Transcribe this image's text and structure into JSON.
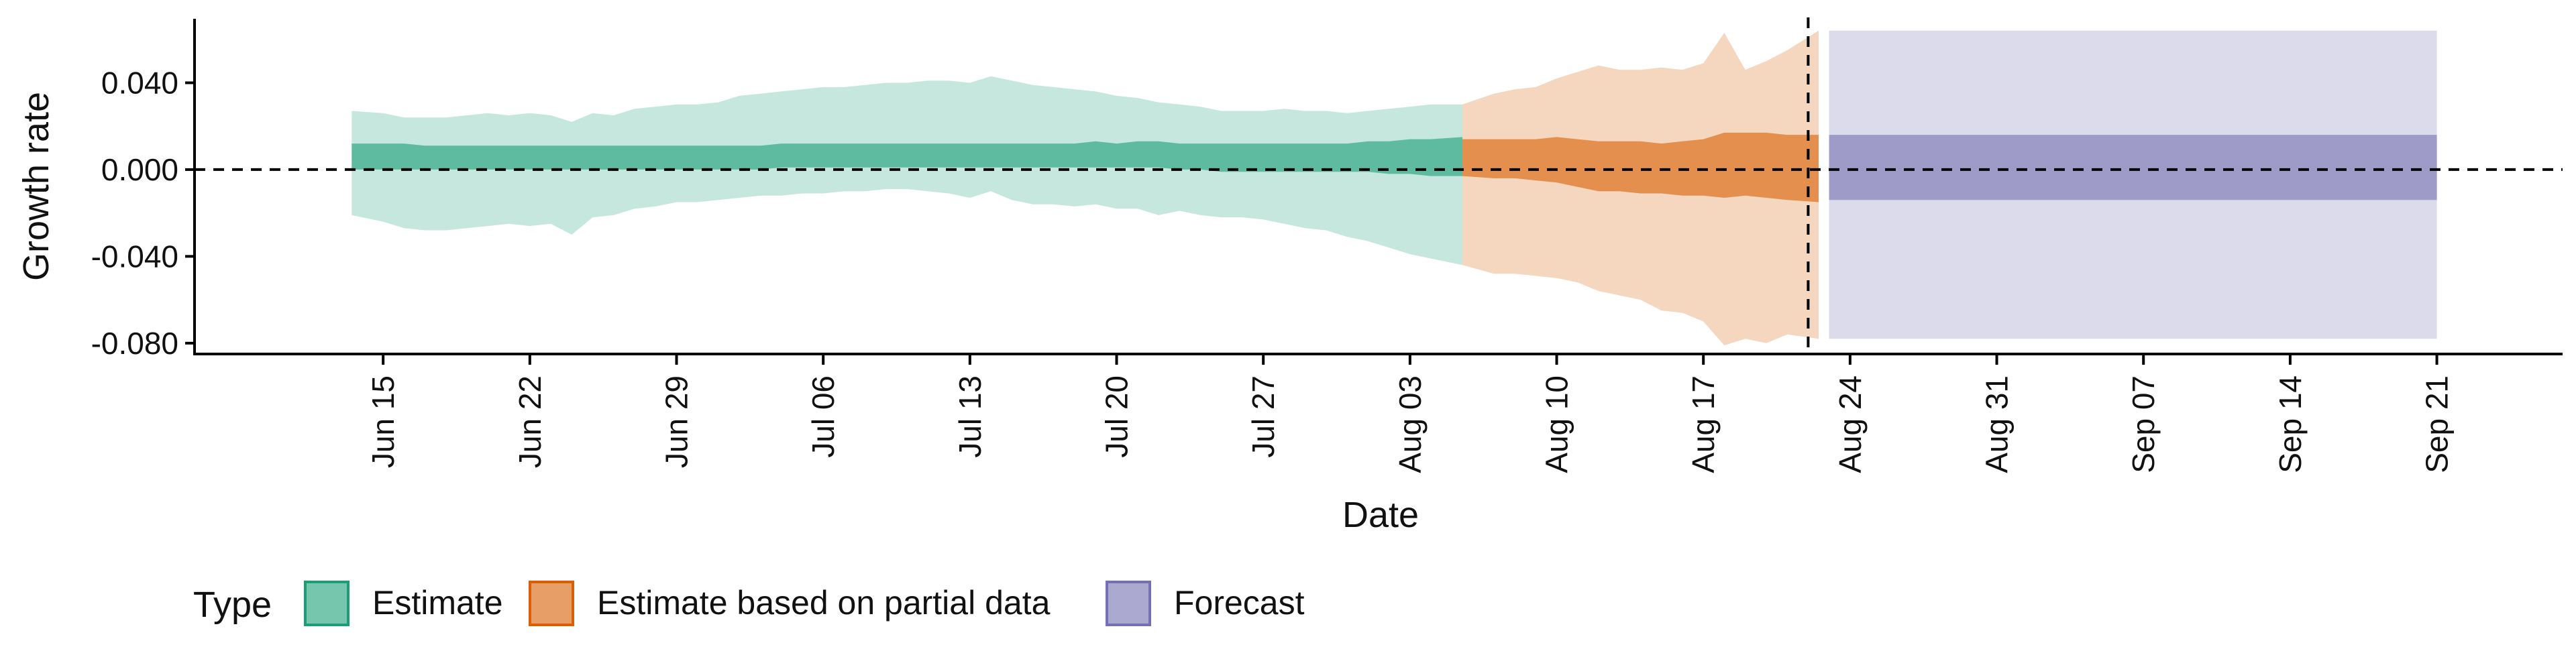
{
  "chart_data": {
    "type": "area",
    "title": "",
    "xlabel": "Date",
    "ylabel": "Growth rate",
    "ylim": [
      -0.085,
      0.0695
    ],
    "xlim": [
      "2020-06-06",
      "2020-09-27"
    ],
    "grid": false,
    "y_ticks": [
      {
        "value": 0.04,
        "label": "0.040"
      },
      {
        "value": 0.0,
        "label": "0.000"
      },
      {
        "value": -0.04,
        "label": "-0.040"
      },
      {
        "value": -0.08,
        "label": "-0.080"
      }
    ],
    "x_ticks": [
      {
        "date": "2020-06-15",
        "label": "Jun 15"
      },
      {
        "date": "2020-06-22",
        "label": "Jun 22"
      },
      {
        "date": "2020-06-29",
        "label": "Jun 29"
      },
      {
        "date": "2020-07-06",
        "label": "Jul 06"
      },
      {
        "date": "2020-07-13",
        "label": "Jul 13"
      },
      {
        "date": "2020-07-20",
        "label": "Jul 20"
      },
      {
        "date": "2020-07-27",
        "label": "Jul 27"
      },
      {
        "date": "2020-08-03",
        "label": "Aug 03"
      },
      {
        "date": "2020-08-10",
        "label": "Aug 10"
      },
      {
        "date": "2020-08-17",
        "label": "Aug 17"
      },
      {
        "date": "2020-08-24",
        "label": "Aug 24"
      },
      {
        "date": "2020-08-31",
        "label": "Aug 31"
      },
      {
        "date": "2020-09-07",
        "label": "Sep 07"
      },
      {
        "date": "2020-09-14",
        "label": "Sep 14"
      },
      {
        "date": "2020-09-21",
        "label": "Sep 21"
      }
    ],
    "reference_lines": [
      {
        "axis": "y",
        "value": 0.0,
        "style": "dashed"
      },
      {
        "axis": "x",
        "date": "2020-08-22",
        "style": "dashed"
      }
    ],
    "legend": {
      "title": "Type",
      "position": "bottom-left"
    },
    "colors": {
      "Estimate": "#1B9E77",
      "Estimate based on partial data": "#D95F02",
      "Forecast": "#7570B3"
    },
    "series": [
      {
        "name": "Estimate",
        "color": "#1B9E77",
        "x": [
          "2020-06-14",
          "2020-06-15",
          "2020-06-16",
          "2020-06-17",
          "2020-06-18",
          "2020-06-19",
          "2020-06-20",
          "2020-06-21",
          "2020-06-22",
          "2020-06-23",
          "2020-06-24",
          "2020-06-25",
          "2020-06-26",
          "2020-06-27",
          "2020-06-28",
          "2020-06-29",
          "2020-06-30",
          "2020-07-01",
          "2020-07-02",
          "2020-07-03",
          "2020-07-04",
          "2020-07-05",
          "2020-07-06",
          "2020-07-07",
          "2020-07-08",
          "2020-07-09",
          "2020-07-10",
          "2020-07-11",
          "2020-07-12",
          "2020-07-13",
          "2020-07-14",
          "2020-07-15",
          "2020-07-16",
          "2020-07-17",
          "2020-07-18",
          "2020-07-19",
          "2020-07-20",
          "2020-07-21",
          "2020-07-22",
          "2020-07-23",
          "2020-07-24",
          "2020-07-25",
          "2020-07-26",
          "2020-07-27",
          "2020-07-28",
          "2020-07-29",
          "2020-07-30",
          "2020-07-31",
          "2020-08-01",
          "2020-08-02",
          "2020-08-03",
          "2020-08-04",
          "2020-08-05"
        ],
        "lower_90": [
          -0.021,
          -0.024,
          -0.027,
          -0.028,
          -0.028,
          -0.027,
          -0.026,
          -0.025,
          -0.026,
          -0.025,
          -0.03,
          -0.022,
          -0.021,
          -0.018,
          -0.017,
          -0.015,
          -0.015,
          -0.014,
          -0.013,
          -0.012,
          -0.012,
          -0.011,
          -0.011,
          -0.01,
          -0.01,
          -0.009,
          -0.009,
          -0.01,
          -0.011,
          -0.013,
          -0.01,
          -0.014,
          -0.016,
          -0.016,
          -0.017,
          -0.016,
          -0.018,
          -0.018,
          -0.021,
          -0.019,
          -0.021,
          -0.022,
          -0.022,
          -0.023,
          -0.025,
          -0.027,
          -0.028,
          -0.031,
          -0.033,
          -0.036,
          -0.039,
          -0.041,
          -0.044
        ],
        "upper_90": [
          0.027,
          0.026,
          0.024,
          0.024,
          0.024,
          0.025,
          0.026,
          0.025,
          0.026,
          0.025,
          0.022,
          0.026,
          0.025,
          0.028,
          0.029,
          0.03,
          0.03,
          0.031,
          0.034,
          0.035,
          0.036,
          0.037,
          0.038,
          0.038,
          0.039,
          0.04,
          0.04,
          0.041,
          0.041,
          0.04,
          0.043,
          0.041,
          0.039,
          0.038,
          0.037,
          0.036,
          0.034,
          0.033,
          0.031,
          0.03,
          0.029,
          0.027,
          0.027,
          0.027,
          0.028,
          0.027,
          0.027,
          0.026,
          0.027,
          0.028,
          0.029,
          0.03,
          0.03
        ],
        "lower_50": [
          0.0,
          0.0,
          0.0,
          0.0,
          0.0,
          0.0,
          0.0,
          0.0,
          0.0,
          0.0,
          0.0,
          0.0,
          0.0,
          0.0,
          0.0,
          0.0,
          0.0,
          0.0,
          0.0,
          0.0,
          0.001,
          0.001,
          0.001,
          0.001,
          0.001,
          0.001,
          0.001,
          0.001,
          0.001,
          0.001,
          0.001,
          0.001,
          0.001,
          0.001,
          0.001,
          0.001,
          0.001,
          0.001,
          0.001,
          0.0,
          0.0,
          -0.001,
          -0.001,
          -0.001,
          -0.001,
          -0.001,
          -0.001,
          -0.001,
          -0.001,
          -0.002,
          -0.002,
          -0.003,
          -0.003
        ],
        "upper_50": [
          0.012,
          0.012,
          0.012,
          0.011,
          0.011,
          0.011,
          0.011,
          0.011,
          0.011,
          0.011,
          0.011,
          0.011,
          0.011,
          0.011,
          0.011,
          0.011,
          0.011,
          0.011,
          0.011,
          0.011,
          0.012,
          0.012,
          0.012,
          0.012,
          0.012,
          0.012,
          0.012,
          0.012,
          0.012,
          0.012,
          0.012,
          0.012,
          0.012,
          0.012,
          0.012,
          0.013,
          0.012,
          0.013,
          0.013,
          0.012,
          0.012,
          0.012,
          0.012,
          0.012,
          0.012,
          0.012,
          0.012,
          0.012,
          0.013,
          0.013,
          0.014,
          0.014,
          0.015
        ]
      },
      {
        "name": "Estimate based on partial data",
        "color": "#D95F02",
        "x": [
          "2020-08-06",
          "2020-08-07",
          "2020-08-08",
          "2020-08-09",
          "2020-08-10",
          "2020-08-11",
          "2020-08-12",
          "2020-08-13",
          "2020-08-14",
          "2020-08-15",
          "2020-08-16",
          "2020-08-17",
          "2020-08-18",
          "2020-08-19",
          "2020-08-20",
          "2020-08-21",
          "2020-08-22"
        ],
        "lower_90": [
          -0.044,
          -0.048,
          -0.048,
          -0.049,
          -0.05,
          -0.052,
          -0.056,
          -0.058,
          -0.06,
          -0.065,
          -0.066,
          -0.07,
          -0.081,
          -0.078,
          -0.08,
          -0.076,
          -0.078
        ],
        "upper_90": [
          0.03,
          0.035,
          0.037,
          0.038,
          0.042,
          0.045,
          0.048,
          0.046,
          0.046,
          0.047,
          0.046,
          0.049,
          0.063,
          0.046,
          0.05,
          0.055,
          0.064
        ],
        "lower_50": [
          -0.003,
          -0.004,
          -0.004,
          -0.005,
          -0.006,
          -0.008,
          -0.01,
          -0.01,
          -0.011,
          -0.011,
          -0.012,
          -0.012,
          -0.013,
          -0.012,
          -0.013,
          -0.014,
          -0.015
        ],
        "upper_50": [
          0.014,
          0.014,
          0.014,
          0.014,
          0.015,
          0.014,
          0.013,
          0.013,
          0.013,
          0.012,
          0.013,
          0.014,
          0.017,
          0.017,
          0.017,
          0.016,
          0.016
        ]
      },
      {
        "name": "Forecast",
        "color": "#7570B3",
        "x": [
          "2020-08-23",
          "2020-09-21"
        ],
        "lower_90": [
          -0.078,
          -0.078
        ],
        "upper_90": [
          0.064,
          0.064
        ],
        "lower_50": [
          -0.014,
          -0.014
        ],
        "upper_50": [
          0.016,
          0.016
        ]
      }
    ]
  }
}
